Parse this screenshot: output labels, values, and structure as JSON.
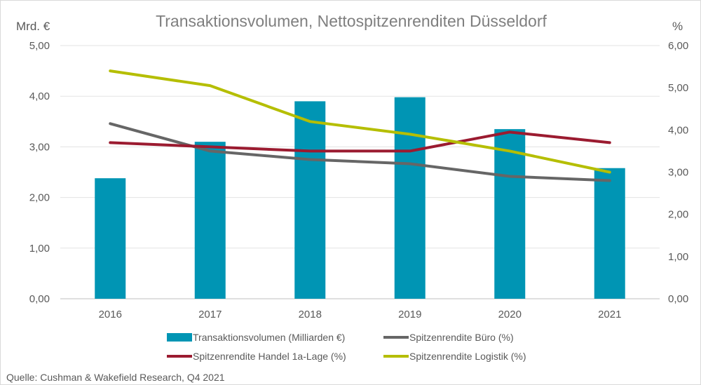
{
  "chart_data": {
    "type": "bar",
    "title": "Transaktionsvolumen, Nettospitzenrenditen Düsseldorf",
    "ylabel_left": "Mrd. €",
    "ylabel_right": "%",
    "categories": [
      "2016",
      "2017",
      "2018",
      "2019",
      "2020",
      "2021"
    ],
    "ylim_left": [
      0,
      5
    ],
    "ylim_right": [
      0,
      6
    ],
    "yticks_left": [
      "0,00",
      "1,00",
      "2,00",
      "3,00",
      "4,00",
      "5,00"
    ],
    "yticks_right": [
      "0,00",
      "1,00",
      "2,00",
      "3,00",
      "4,00",
      "5,00",
      "6,00"
    ],
    "grid": true,
    "legend_position": "bottom",
    "series": [
      {
        "name": "Transaktionsvolumen (Milliarden €)",
        "type": "bar",
        "axis": "left",
        "color": "#0095b4",
        "values": [
          2.38,
          3.1,
          3.9,
          3.98,
          3.35,
          2.58
        ]
      },
      {
        "name": "Spitzenrendite Büro (%)",
        "type": "line",
        "axis": "right",
        "color": "#666666",
        "values": [
          4.15,
          3.5,
          3.3,
          3.2,
          2.9,
          2.8
        ]
      },
      {
        "name": "Spitzenrendite Handel 1a-Lage (%)",
        "type": "line",
        "axis": "right",
        "color": "#9b1b30",
        "values": [
          3.7,
          3.6,
          3.5,
          3.5,
          3.95,
          3.7
        ]
      },
      {
        "name": "Spitzenrendite Logistik  (%)",
        "type": "line",
        "axis": "right",
        "color": "#b5be00",
        "values": [
          5.4,
          5.05,
          4.2,
          3.9,
          3.5,
          3.0
        ]
      }
    ],
    "source": "Quelle: Cushman & Wakefield Research, Q4 2021"
  }
}
